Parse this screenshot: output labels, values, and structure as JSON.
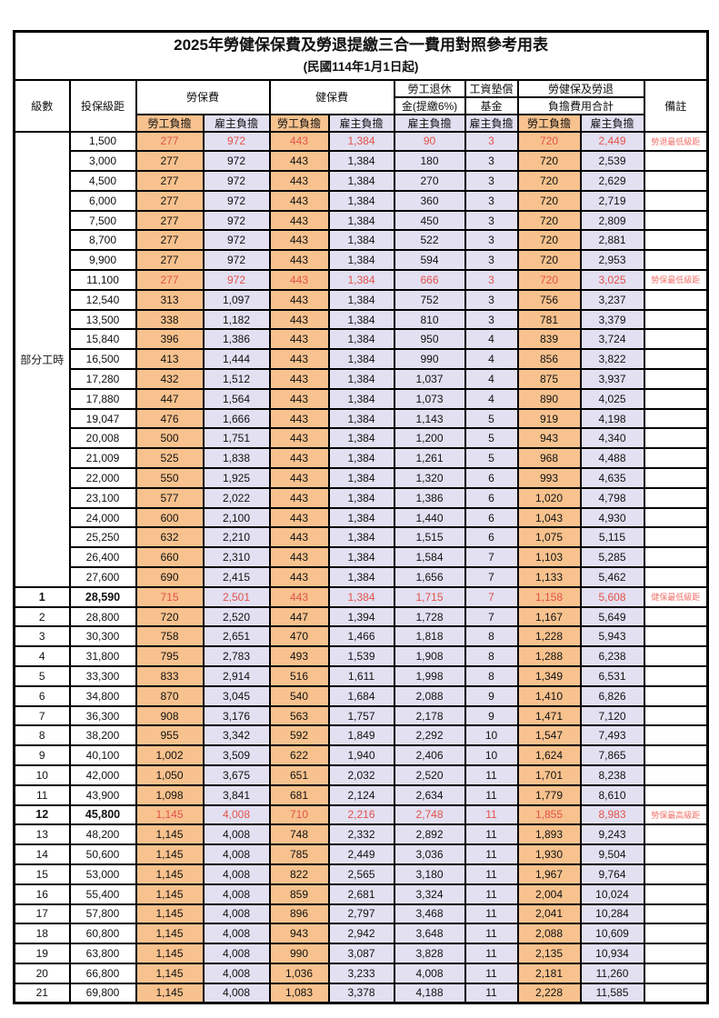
{
  "title": "2025年勞健保保費及勞退提繳三合一費用對照參考用表",
  "subtitle": "(民國114年1月1日起)",
  "header": {
    "level": "級數",
    "bracket": "投保級距",
    "labor_ins": "勞保費",
    "health_ins": "健保費",
    "pension_line1": "勞工退休",
    "pension_line2": "金(提繳6%)",
    "wage_fund_line1": "工資墊償",
    "wage_fund_line2": "基金",
    "total_line1": "勞健保及勞退",
    "total_line2": "負擔費用合計",
    "note": "備註",
    "employee": "勞工負擔",
    "employer": "雇主負擔"
  },
  "colors": {
    "employee_bg": "#F8C28E",
    "employer_bg": "#E2E0F1",
    "highlight_text": "#E2524B",
    "note_text": "#F0736B",
    "border": "#000000"
  },
  "group": {
    "label": "部分工時",
    "rows": 23
  },
  "rows": [
    {
      "level": null,
      "bracket": "1,500",
      "values": [
        "277",
        "972",
        "443",
        "1,384",
        "90",
        "3",
        "720",
        "2,449"
      ],
      "note": "勞退最低級距",
      "highlight": true,
      "bold": false
    },
    {
      "level": null,
      "bracket": "3,000",
      "values": [
        "277",
        "972",
        "443",
        "1,384",
        "180",
        "3",
        "720",
        "2,539"
      ],
      "note": "",
      "highlight": false,
      "bold": false
    },
    {
      "level": null,
      "bracket": "4,500",
      "values": [
        "277",
        "972",
        "443",
        "1,384",
        "270",
        "3",
        "720",
        "2,629"
      ],
      "note": "",
      "highlight": false,
      "bold": false
    },
    {
      "level": null,
      "bracket": "6,000",
      "values": [
        "277",
        "972",
        "443",
        "1,384",
        "360",
        "3",
        "720",
        "2,719"
      ],
      "note": "",
      "highlight": false,
      "bold": false
    },
    {
      "level": null,
      "bracket": "7,500",
      "values": [
        "277",
        "972",
        "443",
        "1,384",
        "450",
        "3",
        "720",
        "2,809"
      ],
      "note": "",
      "highlight": false,
      "bold": false
    },
    {
      "level": null,
      "bracket": "8,700",
      "values": [
        "277",
        "972",
        "443",
        "1,384",
        "522",
        "3",
        "720",
        "2,881"
      ],
      "note": "",
      "highlight": false,
      "bold": false
    },
    {
      "level": null,
      "bracket": "9,900",
      "values": [
        "277",
        "972",
        "443",
        "1,384",
        "594",
        "3",
        "720",
        "2,953"
      ],
      "note": "",
      "highlight": false,
      "bold": false
    },
    {
      "level": null,
      "bracket": "11,100",
      "values": [
        "277",
        "972",
        "443",
        "1,384",
        "666",
        "3",
        "720",
        "3,025"
      ],
      "note": "勞保最低級距",
      "highlight": true,
      "bold": false
    },
    {
      "level": null,
      "bracket": "12,540",
      "values": [
        "313",
        "1,097",
        "443",
        "1,384",
        "752",
        "3",
        "756",
        "3,237"
      ],
      "note": "",
      "highlight": false,
      "bold": false
    },
    {
      "level": null,
      "bracket": "13,500",
      "values": [
        "338",
        "1,182",
        "443",
        "1,384",
        "810",
        "3",
        "781",
        "3,379"
      ],
      "note": "",
      "highlight": false,
      "bold": false
    },
    {
      "level": null,
      "bracket": "15,840",
      "values": [
        "396",
        "1,386",
        "443",
        "1,384",
        "950",
        "4",
        "839",
        "3,724"
      ],
      "note": "",
      "highlight": false,
      "bold": false
    },
    {
      "level": null,
      "bracket": "16,500",
      "values": [
        "413",
        "1,444",
        "443",
        "1,384",
        "990",
        "4",
        "856",
        "3,822"
      ],
      "note": "",
      "highlight": false,
      "bold": false
    },
    {
      "level": null,
      "bracket": "17,280",
      "values": [
        "432",
        "1,512",
        "443",
        "1,384",
        "1,037",
        "4",
        "875",
        "3,937"
      ],
      "note": "",
      "highlight": false,
      "bold": false
    },
    {
      "level": null,
      "bracket": "17,880",
      "values": [
        "447",
        "1,564",
        "443",
        "1,384",
        "1,073",
        "4",
        "890",
        "4,025"
      ],
      "note": "",
      "highlight": false,
      "bold": false
    },
    {
      "level": null,
      "bracket": "19,047",
      "values": [
        "476",
        "1,666",
        "443",
        "1,384",
        "1,143",
        "5",
        "919",
        "4,198"
      ],
      "note": "",
      "highlight": false,
      "bold": false
    },
    {
      "level": null,
      "bracket": "20,008",
      "values": [
        "500",
        "1,751",
        "443",
        "1,384",
        "1,200",
        "5",
        "943",
        "4,340"
      ],
      "note": "",
      "highlight": false,
      "bold": false
    },
    {
      "level": null,
      "bracket": "21,009",
      "values": [
        "525",
        "1,838",
        "443",
        "1,384",
        "1,261",
        "5",
        "968",
        "4,488"
      ],
      "note": "",
      "highlight": false,
      "bold": false
    },
    {
      "level": null,
      "bracket": "22,000",
      "values": [
        "550",
        "1,925",
        "443",
        "1,384",
        "1,320",
        "6",
        "993",
        "4,635"
      ],
      "note": "",
      "highlight": false,
      "bold": false
    },
    {
      "level": null,
      "bracket": "23,100",
      "values": [
        "577",
        "2,022",
        "443",
        "1,384",
        "1,386",
        "6",
        "1,020",
        "4,798"
      ],
      "note": "",
      "highlight": false,
      "bold": false
    },
    {
      "level": null,
      "bracket": "24,000",
      "values": [
        "600",
        "2,100",
        "443",
        "1,384",
        "1,440",
        "6",
        "1,043",
        "4,930"
      ],
      "note": "",
      "highlight": false,
      "bold": false
    },
    {
      "level": null,
      "bracket": "25,250",
      "values": [
        "632",
        "2,210",
        "443",
        "1,384",
        "1,515",
        "6",
        "1,075",
        "5,115"
      ],
      "note": "",
      "highlight": false,
      "bold": false
    },
    {
      "level": null,
      "bracket": "26,400",
      "values": [
        "660",
        "2,310",
        "443",
        "1,384",
        "1,584",
        "7",
        "1,103",
        "5,285"
      ],
      "note": "",
      "highlight": false,
      "bold": false
    },
    {
      "level": null,
      "bracket": "27,600",
      "values": [
        "690",
        "2,415",
        "443",
        "1,384",
        "1,656",
        "7",
        "1,133",
        "5,462"
      ],
      "note": "",
      "highlight": false,
      "bold": false
    },
    {
      "level": "1",
      "bracket": "28,590",
      "values": [
        "715",
        "2,501",
        "443",
        "1,384",
        "1,715",
        "7",
        "1,158",
        "5,608"
      ],
      "note": "健保最低級距",
      "highlight": true,
      "bold": true
    },
    {
      "level": "2",
      "bracket": "28,800",
      "values": [
        "720",
        "2,520",
        "447",
        "1,394",
        "1,728",
        "7",
        "1,167",
        "5,649"
      ],
      "note": "",
      "highlight": false,
      "bold": false
    },
    {
      "level": "3",
      "bracket": "30,300",
      "values": [
        "758",
        "2,651",
        "470",
        "1,466",
        "1,818",
        "8",
        "1,228",
        "5,943"
      ],
      "note": "",
      "highlight": false,
      "bold": false
    },
    {
      "level": "4",
      "bracket": "31,800",
      "values": [
        "795",
        "2,783",
        "493",
        "1,539",
        "1,908",
        "8",
        "1,288",
        "6,238"
      ],
      "note": "",
      "highlight": false,
      "bold": false
    },
    {
      "level": "5",
      "bracket": "33,300",
      "values": [
        "833",
        "2,914",
        "516",
        "1,611",
        "1,998",
        "8",
        "1,349",
        "6,531"
      ],
      "note": "",
      "highlight": false,
      "bold": false
    },
    {
      "level": "6",
      "bracket": "34,800",
      "values": [
        "870",
        "3,045",
        "540",
        "1,684",
        "2,088",
        "9",
        "1,410",
        "6,826"
      ],
      "note": "",
      "highlight": false,
      "bold": false
    },
    {
      "level": "7",
      "bracket": "36,300",
      "values": [
        "908",
        "3,176",
        "563",
        "1,757",
        "2,178",
        "9",
        "1,471",
        "7,120"
      ],
      "note": "",
      "highlight": false,
      "bold": false
    },
    {
      "level": "8",
      "bracket": "38,200",
      "values": [
        "955",
        "3,342",
        "592",
        "1,849",
        "2,292",
        "10",
        "1,547",
        "7,493"
      ],
      "note": "",
      "highlight": false,
      "bold": false
    },
    {
      "level": "9",
      "bracket": "40,100",
      "values": [
        "1,002",
        "3,509",
        "622",
        "1,940",
        "2,406",
        "10",
        "1,624",
        "7,865"
      ],
      "note": "",
      "highlight": false,
      "bold": false
    },
    {
      "level": "10",
      "bracket": "42,000",
      "values": [
        "1,050",
        "3,675",
        "651",
        "2,032",
        "2,520",
        "11",
        "1,701",
        "8,238"
      ],
      "note": "",
      "highlight": false,
      "bold": false
    },
    {
      "level": "11",
      "bracket": "43,900",
      "values": [
        "1,098",
        "3,841",
        "681",
        "2,124",
        "2,634",
        "11",
        "1,779",
        "8,610"
      ],
      "note": "",
      "highlight": false,
      "bold": false
    },
    {
      "level": "12",
      "bracket": "45,800",
      "values": [
        "1,145",
        "4,008",
        "710",
        "2,216",
        "2,748",
        "11",
        "1,855",
        "8,983"
      ],
      "note": "勞保最高級距",
      "highlight": true,
      "bold": true
    },
    {
      "level": "13",
      "bracket": "48,200",
      "values": [
        "1,145",
        "4,008",
        "748",
        "2,332",
        "2,892",
        "11",
        "1,893",
        "9,243"
      ],
      "note": "",
      "highlight": false,
      "bold": false
    },
    {
      "level": "14",
      "bracket": "50,600",
      "values": [
        "1,145",
        "4,008",
        "785",
        "2,449",
        "3,036",
        "11",
        "1,930",
        "9,504"
      ],
      "note": "",
      "highlight": false,
      "bold": false
    },
    {
      "level": "15",
      "bracket": "53,000",
      "values": [
        "1,145",
        "4,008",
        "822",
        "2,565",
        "3,180",
        "11",
        "1,967",
        "9,764"
      ],
      "note": "",
      "highlight": false,
      "bold": false
    },
    {
      "level": "16",
      "bracket": "55,400",
      "values": [
        "1,145",
        "4,008",
        "859",
        "2,681",
        "3,324",
        "11",
        "2,004",
        "10,024"
      ],
      "note": "",
      "highlight": false,
      "bold": false
    },
    {
      "level": "17",
      "bracket": "57,800",
      "values": [
        "1,145",
        "4,008",
        "896",
        "2,797",
        "3,468",
        "11",
        "2,041",
        "10,284"
      ],
      "note": "",
      "highlight": false,
      "bold": false
    },
    {
      "level": "18",
      "bracket": "60,800",
      "values": [
        "1,145",
        "4,008",
        "943",
        "2,942",
        "3,648",
        "11",
        "2,088",
        "10,609"
      ],
      "note": "",
      "highlight": false,
      "bold": false
    },
    {
      "level": "19",
      "bracket": "63,800",
      "values": [
        "1,145",
        "4,008",
        "990",
        "3,087",
        "3,828",
        "11",
        "2,135",
        "10,934"
      ],
      "note": "",
      "highlight": false,
      "bold": false
    },
    {
      "level": "20",
      "bracket": "66,800",
      "values": [
        "1,145",
        "4,008",
        "1,036",
        "3,233",
        "4,008",
        "11",
        "2,181",
        "11,260"
      ],
      "note": "",
      "highlight": false,
      "bold": false
    },
    {
      "level": "21",
      "bracket": "69,800",
      "values": [
        "1,145",
        "4,008",
        "1,083",
        "3,378",
        "4,188",
        "11",
        "2,228",
        "11,585"
      ],
      "note": "",
      "highlight": false,
      "bold": false
    }
  ]
}
